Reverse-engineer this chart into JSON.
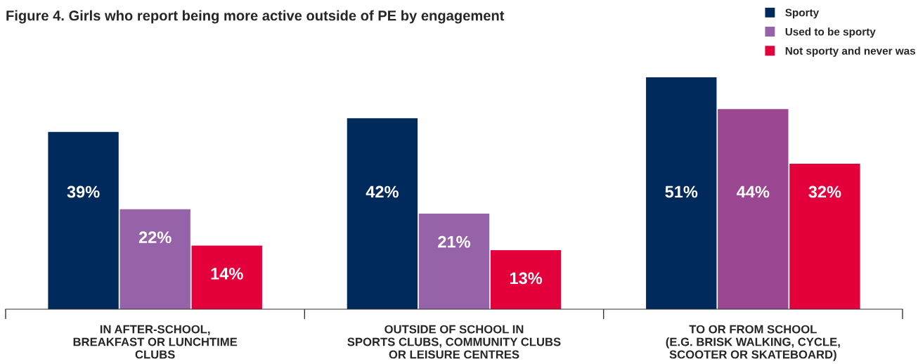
{
  "chart_data": {
    "type": "bar",
    "title": "Figure 4. Girls who report being more active outside of PE by engagement",
    "categories": [
      "IN AFTER-SCHOOL,\nBREAKFAST OR LUNCHTIME\nCLUBS",
      "OUTSIDE OF SCHOOL IN\nSPORTS CLUBS, COMMUNITY CLUBS\nOR LEISURE CENTRES",
      "TO OR FROM SCHOOL\n(E.G. BRISK WALKING, CYCLE,\nSCOOTER OR SKATEBOARD)"
    ],
    "series": [
      {
        "name": "Sporty",
        "color": "#002a5c",
        "values": [
          39,
          42,
          51
        ],
        "value_labels": [
          "39%",
          "42%",
          "51%"
        ]
      },
      {
        "name": "Used to be sporty",
        "color": "#9663a8",
        "colors": [
          "#9663a8",
          "#9663a8",
          "#9a4690"
        ],
        "values": [
          22,
          21,
          44
        ],
        "value_labels": [
          "22%",
          "21%",
          "44%"
        ]
      },
      {
        "name": "Not sporty and never was",
        "color": "#e4003b",
        "values": [
          14,
          13,
          32
        ],
        "value_labels": [
          "14%",
          "13%",
          "32%"
        ]
      }
    ],
    "legend": "top right",
    "grid": false
  }
}
